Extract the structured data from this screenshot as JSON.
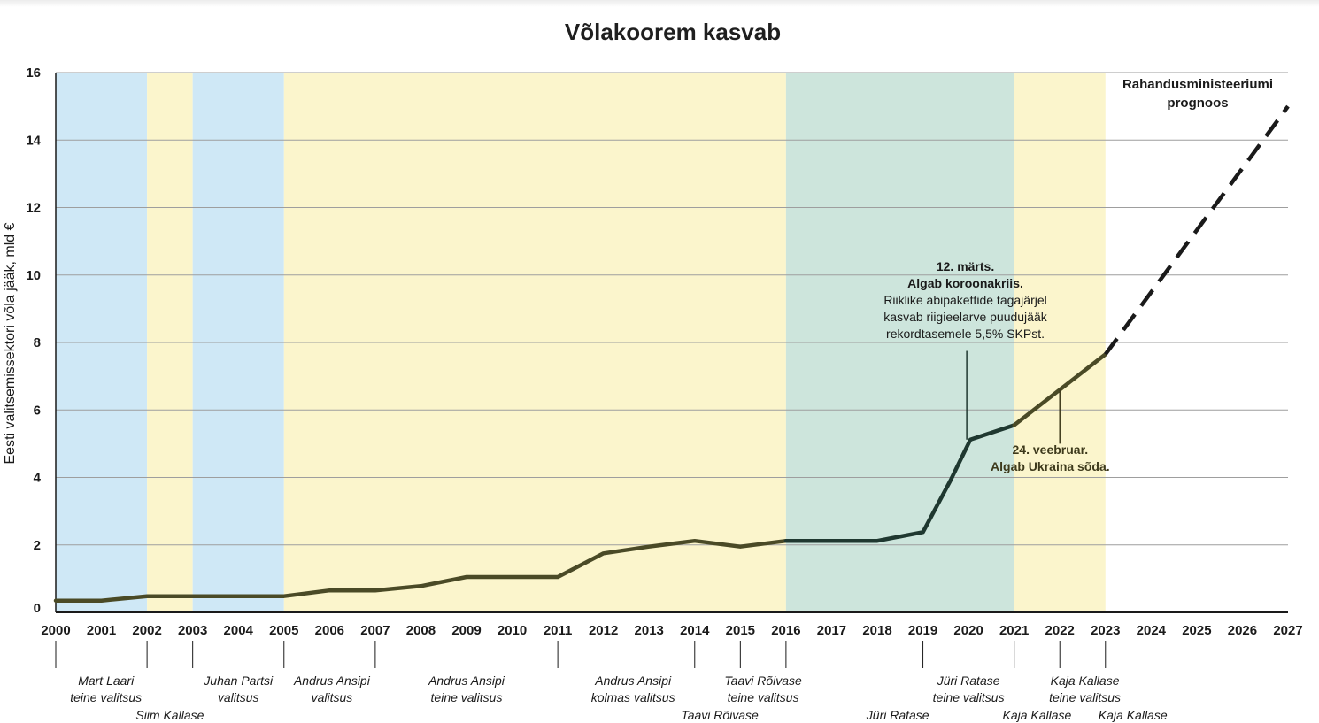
{
  "chart_data": {
    "type": "line",
    "title": "Võlakoorem kasvab",
    "xlabel": "",
    "ylabel": "Eesti valitsemissektori võla jääk, mld €",
    "ylim": [
      0,
      16
    ],
    "xlim": [
      2000,
      2027
    ],
    "yticks": [
      "0",
      "2",
      "4",
      "6",
      "8",
      "10",
      "12",
      "14",
      "16"
    ],
    "xticks": [
      "2000",
      "2001",
      "2002",
      "2003",
      "2004",
      "2005",
      "2006",
      "2007",
      "2008",
      "2009",
      "2010",
      "2011",
      "2012",
      "2013",
      "2014",
      "2015",
      "2016",
      "2017",
      "2018",
      "2019",
      "2020",
      "2021",
      "2022",
      "2023",
      "2024",
      "2025",
      "2026",
      "2027"
    ],
    "grid": true,
    "series": [
      {
        "name": "Võla jääk",
        "style": "solid",
        "points": [
          {
            "x": 2000,
            "y": 0.35
          },
          {
            "x": 2001,
            "y": 0.35
          },
          {
            "x": 2002,
            "y": 0.48
          },
          {
            "x": 2003,
            "y": 0.48
          },
          {
            "x": 2004,
            "y": 0.48
          },
          {
            "x": 2005,
            "y": 0.48
          },
          {
            "x": 2006,
            "y": 0.65
          },
          {
            "x": 2007,
            "y": 0.65
          },
          {
            "x": 2008,
            "y": 0.78
          },
          {
            "x": 2009,
            "y": 1.05
          },
          {
            "x": 2010,
            "y": 1.05
          },
          {
            "x": 2011,
            "y": 1.05
          },
          {
            "x": 2012,
            "y": 1.75
          },
          {
            "x": 2013,
            "y": 1.95
          },
          {
            "x": 2014,
            "y": 2.12
          },
          {
            "x": 2015,
            "y": 1.95
          },
          {
            "x": 2016,
            "y": 2.12
          },
          {
            "x": 2017,
            "y": 2.12
          },
          {
            "x": 2018,
            "y": 2.12
          },
          {
            "x": 2019,
            "y": 2.38
          },
          {
            "x": 2019.6,
            "y": 3.9
          },
          {
            "x": 2020.04,
            "y": 5.12
          },
          {
            "x": 2021,
            "y": 5.55
          },
          {
            "x": 2022,
            "y": 6.6
          },
          {
            "x": 2023,
            "y": 7.65
          }
        ]
      },
      {
        "name": "Rahandusministeeriumi prognoos",
        "style": "dashed",
        "points": [
          {
            "x": 2023,
            "y": 7.65
          },
          {
            "x": 2027,
            "y": 15.0
          }
        ]
      }
    ],
    "line_colors": {
      "early": "#4a4a26",
      "middle": "#1f3830",
      "late": "#4a4a26",
      "forecast": "#1a1a1a"
    },
    "periods": [
      {
        "from": 2000,
        "to": 2002,
        "color": "#cfe8f6"
      },
      {
        "from": 2002,
        "to": 2003,
        "color": "#fbf5cc"
      },
      {
        "from": 2003,
        "to": 2005,
        "color": "#cfe8f6"
      },
      {
        "from": 2005,
        "to": 2016,
        "color": "#fbf5cc"
      },
      {
        "from": 2016,
        "to": 2021,
        "color": "#cde5dc"
      },
      {
        "from": 2021,
        "to": 2023,
        "color": "#fbf5cc"
      }
    ],
    "governments": [
      {
        "lines": [
          "Mart Laari",
          "teine valitsus"
        ],
        "at": 2001.1,
        "row": 0
      },
      {
        "lines": [
          "Siim Kallase"
        ],
        "at": 2002.5,
        "row": 1
      },
      {
        "lines": [
          "Juhan Partsi",
          "valitsus"
        ],
        "at": 2004.0,
        "row": 0
      },
      {
        "lines": [
          "Andrus Ansipi",
          "valitsus"
        ],
        "at": 2006.05,
        "row": 0
      },
      {
        "lines": [
          "Andrus Ansipi",
          "teine valitsus"
        ],
        "at": 2009.0,
        "row": 0
      },
      {
        "lines": [
          "Andrus Ansipi",
          "kolmas valitsus"
        ],
        "at": 2012.65,
        "row": 0
      },
      {
        "lines": [
          "Taavi Rõivase"
        ],
        "at": 2014.55,
        "row": 1
      },
      {
        "lines": [
          "Taavi Rõivase",
          "teine valitsus"
        ],
        "at": 2015.5,
        "row": 0
      },
      {
        "lines": [
          "Jüri Ratase"
        ],
        "at": 2018.45,
        "row": 1
      },
      {
        "lines": [
          "Jüri Ratase",
          "teine valitsus"
        ],
        "at": 2020.0,
        "row": 0
      },
      {
        "lines": [
          "Kaja Kallase"
        ],
        "at": 2021.5,
        "row": 1
      },
      {
        "lines": [
          "Kaja Kallase",
          "teine valitsus"
        ],
        "at": 2022.55,
        "row": 0
      },
      {
        "lines": [
          "Kaja Kallase"
        ],
        "at": 2023.6,
        "row": 1
      }
    ],
    "government_dividers": [
      2000,
      2002,
      2003,
      2005,
      2007,
      2011,
      2014,
      2015,
      2016,
      2019,
      2021,
      2022,
      2023
    ],
    "annotations": [
      {
        "name": "covid",
        "lines": [
          {
            "text": "12. märts.",
            "bold": true
          },
          {
            "text": "Algab koroonakriis.",
            "bold": true
          },
          {
            "text": "Riiklike abipakettide tagajärjel",
            "bold": false
          },
          {
            "text": "kasvab riigieelarve puudujääk",
            "bold": false
          },
          {
            "text": "rekordtasemele 5,5% SKPst.",
            "bold": false
          }
        ],
        "x": 2020.0,
        "y_from": 5.12,
        "y_to": 7.75,
        "text_center_x": 2019.95
      },
      {
        "name": "ukraine",
        "lines": [
          {
            "text": "24. veebruar.",
            "bold": true
          },
          {
            "text": "Algab Ukraina sõda.",
            "bold": true
          }
        ],
        "x": 2022.0,
        "y_from": 6.6,
        "y_to": 5.0,
        "text_center_x": 2021.75
      },
      {
        "name": "forecast",
        "lines": [
          {
            "text": "Rahandusministeeriumi",
            "bold": true
          },
          {
            "text": "prognoos",
            "bold": true
          }
        ],
        "x": 2026.0,
        "y": 15.7
      }
    ]
  }
}
